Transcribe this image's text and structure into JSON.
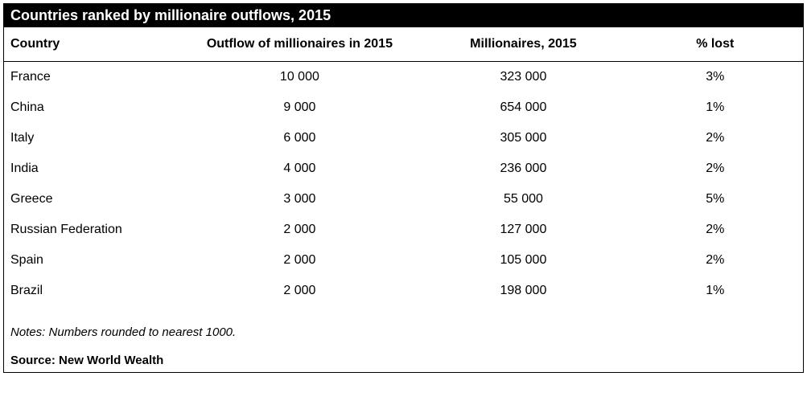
{
  "table": {
    "type": "table",
    "title": "Countries ranked by millionaire outflows, 2015",
    "columns": [
      {
        "key": "country",
        "label": "Country",
        "align": "left",
        "width_pct": 22
      },
      {
        "key": "outflow",
        "label": "Outflow of millionaires in 2015",
        "align": "center",
        "width_pct": 30
      },
      {
        "key": "millionaires",
        "label": "Millionaires, 2015",
        "align": "center",
        "width_pct": 26
      },
      {
        "key": "pct_lost",
        "label": "% lost",
        "align": "center",
        "width_pct": 22
      }
    ],
    "rows": [
      {
        "country": "France",
        "outflow": "10 000",
        "millionaires": "323 000",
        "pct_lost": "3%"
      },
      {
        "country": "China",
        "outflow": "9 000",
        "millionaires": "654 000",
        "pct_lost": "1%"
      },
      {
        "country": "Italy",
        "outflow": "6 000",
        "millionaires": "305 000",
        "pct_lost": "2%"
      },
      {
        "country": "India",
        "outflow": "4 000",
        "millionaires": "236 000",
        "pct_lost": "2%"
      },
      {
        "country": "Greece",
        "outflow": "3 000",
        "millionaires": "55 000",
        "pct_lost": "5%"
      },
      {
        "country": "Russian Federation",
        "outflow": "2 000",
        "millionaires": "127 000",
        "pct_lost": "2%"
      },
      {
        "country": "Spain",
        "outflow": "2 000",
        "millionaires": "105 000",
        "pct_lost": "2%"
      },
      {
        "country": "Brazil",
        "outflow": "2 000",
        "millionaires": "198 000",
        "pct_lost": "1%"
      }
    ],
    "notes": "Notes: Numbers rounded to nearest 1000.",
    "source": "Source: New World Wealth",
    "style": {
      "title_bg": "#000000",
      "title_color": "#ffffff",
      "title_fontsize_pt": 14,
      "title_fontweight": "bold",
      "header_fontsize_pt": 12,
      "header_fontweight": "bold",
      "body_fontsize_pt": 12,
      "border_color": "#000000",
      "background_color": "#ffffff",
      "text_color": "#000000",
      "notes_font_style": "italic",
      "source_fontweight": "bold"
    }
  }
}
